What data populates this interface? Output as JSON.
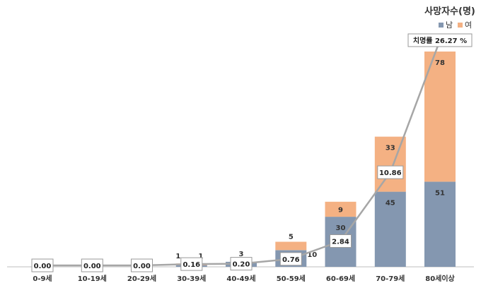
{
  "chart_data": {
    "type": "bar",
    "stacked": true,
    "title": "사망자수(명)",
    "categories": [
      "0-9세",
      "10-19세",
      "20-29세",
      "30-39세",
      "40-49세",
      "50-59세",
      "60-69세",
      "70-79세",
      "80세이상"
    ],
    "series": [
      {
        "name": "남",
        "color": "#8497b0",
        "values": [
          0,
          0,
          0,
          1,
          3,
          10,
          30,
          45,
          51
        ],
        "labels": [
          "",
          "",
          "",
          "1",
          "3",
          "10",
          "30",
          "45",
          "51"
        ]
      },
      {
        "name": "여",
        "color": "#f4b183",
        "values": [
          0,
          0,
          0,
          1,
          0,
          5,
          9,
          33,
          78
        ],
        "labels": [
          "",
          "",
          "",
          "1",
          "",
          "5",
          "9",
          "33",
          "78"
        ]
      }
    ],
    "fatality_rate": {
      "values": [
        0.0,
        0.0,
        0.0,
        0.16,
        0.2,
        0.76,
        2.84,
        10.86,
        26.27
      ],
      "labels": [
        "0.00",
        "0.00",
        "0.00",
        "0.16",
        "0.20",
        "0.76",
        "2.84",
        "10.86",
        "26.27 %"
      ],
      "last_prefix": "치명률",
      "color": "#a6a6a6"
    },
    "legend_position": "top-right",
    "grid": false
  }
}
